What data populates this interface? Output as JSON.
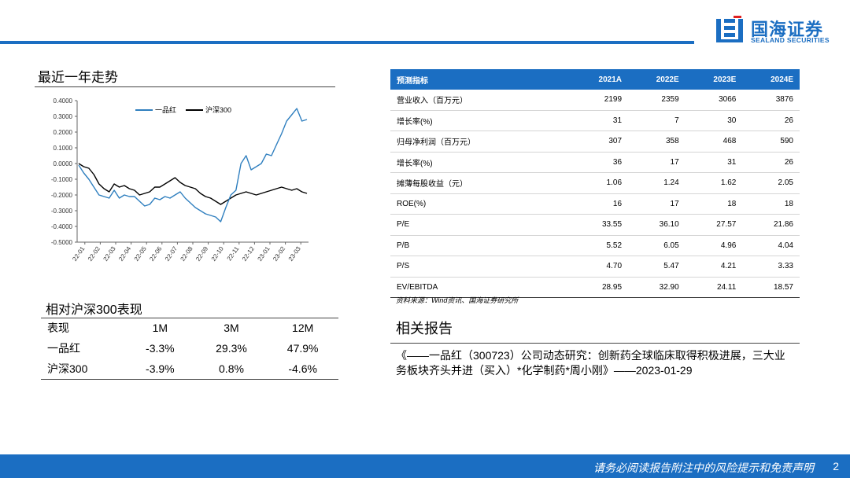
{
  "header": {
    "logo_cn": "国海证券",
    "logo_en": "SEALAND SECURITIES"
  },
  "chart_section": {
    "title": "最近一年走势"
  },
  "chart_data": {
    "type": "line",
    "title": "",
    "xlabel": "",
    "ylabel": "",
    "ylim": [
      -0.5,
      0.4
    ],
    "yticks": [
      "0.4000",
      "0.3000",
      "0.2000",
      "0.1000",
      "0.0000",
      "-0.1000",
      "-0.2000",
      "-0.3000",
      "-0.4000",
      "-0.5000"
    ],
    "xticks": [
      "22-01",
      "22-02",
      "22-03",
      "22-04",
      "22-05",
      "22-06",
      "22-07",
      "22-08",
      "22-09",
      "22-10",
      "22-11",
      "22-12",
      "23-01",
      "23-02",
      "23-03"
    ],
    "legend_position": "top-center",
    "series": [
      {
        "name": "一品红",
        "color": "#2f7fbf",
        "values": [
          -0.01,
          -0.06,
          -0.1,
          -0.15,
          -0.2,
          -0.21,
          -0.22,
          -0.17,
          -0.22,
          -0.2,
          -0.21,
          -0.21,
          -0.24,
          -0.27,
          -0.26,
          -0.22,
          -0.23,
          -0.21,
          -0.22,
          -0.2,
          -0.18,
          -0.22,
          -0.25,
          -0.28,
          -0.3,
          -0.32,
          -0.33,
          -0.34,
          -0.37,
          -0.28,
          -0.2,
          -0.17,
          0.0,
          0.05,
          -0.04,
          -0.02,
          0.0,
          0.06,
          0.05,
          0.12,
          0.19,
          0.27,
          0.31,
          0.35,
          0.27,
          0.28
        ]
      },
      {
        "name": "沪深300",
        "color": "#000000",
        "values": [
          0.0,
          -0.02,
          -0.03,
          -0.07,
          -0.13,
          -0.16,
          -0.18,
          -0.13,
          -0.15,
          -0.14,
          -0.16,
          -0.17,
          -0.2,
          -0.19,
          -0.18,
          -0.15,
          -0.15,
          -0.13,
          -0.11,
          -0.09,
          -0.12,
          -0.14,
          -0.15,
          -0.16,
          -0.19,
          -0.21,
          -0.22,
          -0.24,
          -0.26,
          -0.24,
          -0.22,
          -0.2,
          -0.19,
          -0.18,
          -0.19,
          -0.2,
          -0.19,
          -0.18,
          -0.17,
          -0.16,
          -0.15,
          -0.16,
          -0.17,
          -0.16,
          -0.18,
          -0.19
        ]
      }
    ]
  },
  "relative_perf": {
    "title": "相对沪深300表现",
    "headers": [
      "表现",
      "1M",
      "3M",
      "12M"
    ],
    "rows": [
      [
        "一品红",
        "-3.3%",
        "29.3%",
        "47.9%"
      ],
      [
        "沪深300",
        "-3.9%",
        "0.8%",
        "-4.6%"
      ]
    ]
  },
  "forecast": {
    "headers": [
      "预测指标",
      "2021A",
      "2022E",
      "2023E",
      "2024E"
    ],
    "rows": [
      [
        "营业收入（百万元）",
        "2199",
        "2359",
        "3066",
        "3876"
      ],
      [
        "增长率(%)",
        "31",
        "7",
        "30",
        "26"
      ],
      [
        "归母净利润（百万元）",
        "307",
        "358",
        "468",
        "590"
      ],
      [
        "增长率(%)",
        "36",
        "17",
        "31",
        "26"
      ],
      [
        "摊薄每股收益（元）",
        "1.06",
        "1.24",
        "1.62",
        "2.05"
      ],
      [
        "ROE(%)",
        "16",
        "17",
        "18",
        "18"
      ],
      [
        "P/E",
        "33.55",
        "36.10",
        "27.57",
        "21.86"
      ],
      [
        "P/B",
        "5.52",
        "6.05",
        "4.96",
        "4.04"
      ],
      [
        "P/S",
        "4.70",
        "5.47",
        "4.21",
        "3.33"
      ],
      [
        "EV/EBITDA",
        "28.95",
        "32.90",
        "24.11",
        "18.57"
      ]
    ],
    "source": "资料来源：Wind资讯、国海证券研究所"
  },
  "related": {
    "title": "相关报告",
    "text": "《——一品红（300723）公司动态研究：创新药全球临床取得积极进展，三大业务板块齐头并进（买入）*化学制药*周小刚》——2023-01-29"
  },
  "footer": {
    "disclaimer": "请务必阅读报告附注中的风险提示和免责声明",
    "page": "2"
  },
  "colors": {
    "brand_blue": "#1b6ec2"
  }
}
